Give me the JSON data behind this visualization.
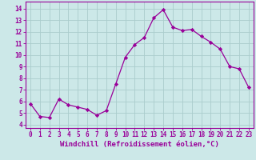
{
  "x": [
    0,
    1,
    2,
    3,
    4,
    5,
    6,
    7,
    8,
    9,
    10,
    11,
    12,
    13,
    14,
    15,
    16,
    17,
    18,
    19,
    20,
    21,
    22,
    23
  ],
  "y": [
    5.8,
    4.7,
    4.6,
    6.2,
    5.7,
    5.5,
    5.3,
    4.8,
    5.2,
    7.5,
    9.8,
    10.9,
    11.5,
    13.2,
    13.9,
    12.4,
    12.1,
    12.2,
    11.6,
    11.1,
    10.5,
    9.0,
    8.8,
    7.2
  ],
  "line_color": "#990099",
  "marker": "D",
  "marker_size": 2.2,
  "bg_color": "#cce8e8",
  "grid_color": "#aacccc",
  "xlabel": "Windchill (Refroidissement éolien,°C)",
  "xlabel_color": "#990099",
  "xlabel_fontsize": 6.5,
  "ylabel_ticks": [
    4,
    5,
    6,
    7,
    8,
    9,
    10,
    11,
    12,
    13,
    14
  ],
  "ylim": [
    3.7,
    14.6
  ],
  "xlim": [
    -0.5,
    23.5
  ],
  "tick_color": "#990099",
  "tick_fontsize": 5.5,
  "spine_color": "#990099"
}
